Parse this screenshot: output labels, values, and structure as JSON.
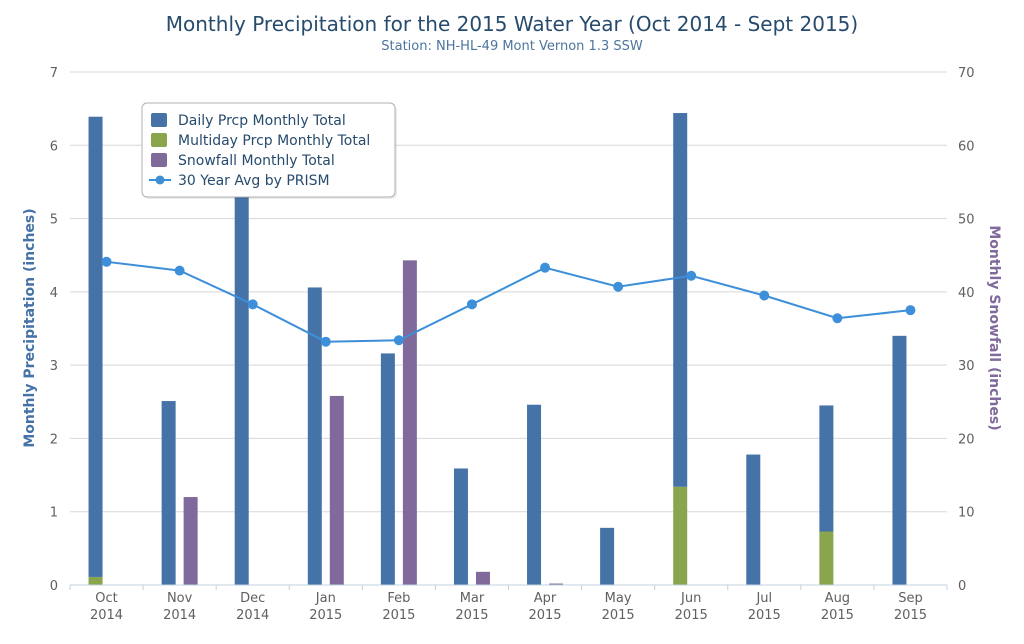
{
  "chart_data": {
    "type": "bar",
    "title": "Monthly Precipitation for the 2015 Water Year (Oct 2014 - Sept 2015)",
    "subtitle": "Station: NH-HL-49 Mont Vernon 1.3 SSW",
    "categories": [
      [
        "Oct",
        "2014"
      ],
      [
        "Nov",
        "2014"
      ],
      [
        "Dec",
        "2014"
      ],
      [
        "Jan",
        "2015"
      ],
      [
        "Feb",
        "2015"
      ],
      [
        "Mar",
        "2015"
      ],
      [
        "Apr",
        "2015"
      ],
      [
        "May",
        "2015"
      ],
      [
        "Jun",
        "2015"
      ],
      [
        "Jul",
        "2015"
      ],
      [
        "Aug",
        "2015"
      ],
      [
        "Sep",
        "2015"
      ]
    ],
    "ylabel": "Monthly Precipitation (inches)",
    "ylabel_right": "Monthly Snowfall (inches)",
    "ylim": [
      0,
      7
    ],
    "ylim_right": [
      0,
      70
    ],
    "yticks": [
      0,
      1,
      2,
      3,
      4,
      5,
      6,
      7
    ],
    "yticks_right": [
      0,
      10,
      20,
      30,
      40,
      50,
      60,
      70
    ],
    "grid": true,
    "legend_position": "top-left",
    "colors": {
      "daily": "#4572a7",
      "multiday": "#89a54e",
      "snowfall": "#80699b",
      "avg": "#3d8fd9"
    },
    "series": [
      {
        "name": "Daily Prcp Monthly Total",
        "axis": "left",
        "stack": "precip",
        "values": [
          6.28,
          2.51,
          5.35,
          4.06,
          3.16,
          1.59,
          2.46,
          0.78,
          5.1,
          1.78,
          1.72,
          3.4
        ]
      },
      {
        "name": "Multiday Prcp Monthly Total",
        "axis": "left",
        "stack": "precip",
        "values": [
          0.11,
          0,
          0,
          0,
          0,
          0,
          0,
          0,
          1.34,
          0,
          0.73,
          0
        ]
      },
      {
        "name": "Snowfall Monthly Total",
        "axis": "right",
        "values": [
          0,
          12.0,
          0,
          25.8,
          44.3,
          1.8,
          0.2,
          0,
          0,
          0,
          0,
          0
        ]
      },
      {
        "name": "30 Year Avg by PRISM",
        "axis": "left",
        "type": "line",
        "values": [
          4.41,
          4.29,
          3.83,
          3.32,
          3.34,
          3.83,
          4.33,
          4.07,
          4.22,
          3.95,
          3.64,
          3.75
        ]
      }
    ]
  }
}
